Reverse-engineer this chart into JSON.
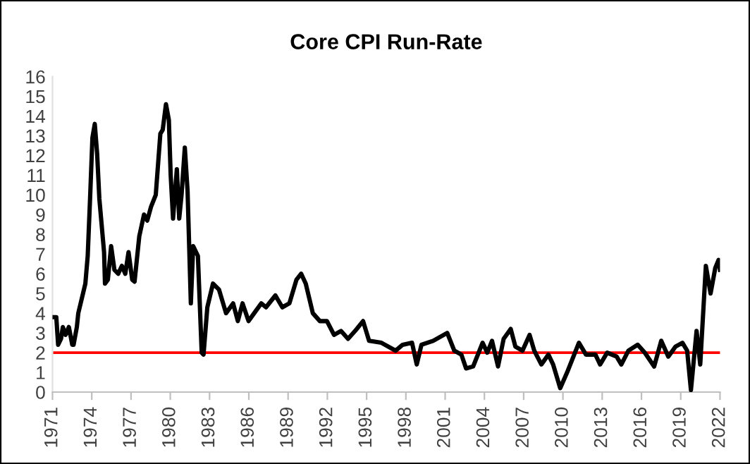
{
  "chart_data": {
    "type": "line",
    "title": "Core CPI Run-Rate",
    "series": [
      {
        "color": "#000000",
        "x": [
          1971.0,
          1971.29,
          1971.43,
          1971.65,
          1971.79,
          1972.0,
          1972.25,
          1972.51,
          1972.61,
          1972.86,
          1972.97,
          1973.33,
          1973.51,
          1973.69,
          1973.87,
          1974.05,
          1974.23,
          1974.41,
          1974.58,
          1974.94,
          1975.01,
          1975.23,
          1975.48,
          1975.73,
          1976.02,
          1976.3,
          1976.56,
          1976.81,
          1977.09,
          1977.27,
          1977.63,
          1977.99,
          1978.24,
          1978.53,
          1978.89,
          1979.24,
          1979.42,
          1979.67,
          1979.89,
          1980.03,
          1980.21,
          1980.5,
          1980.68,
          1980.86,
          1981.11,
          1981.32,
          1981.57,
          1981.75,
          1982.11,
          1982.4,
          1982.54,
          1982.83,
          1983.26,
          1983.72,
          1984.26,
          1984.8,
          1985.16,
          1985.52,
          1985.98,
          1986.41,
          1986.95,
          1987.31,
          1988.03,
          1988.56,
          1989.1,
          1989.64,
          1990.0,
          1990.35,
          1990.89,
          1991.43,
          1991.97,
          1992.51,
          1993.04,
          1993.58,
          1994.12,
          1994.73,
          1995.19,
          1996.13,
          1997.21,
          1997.75,
          1998.47,
          1998.83,
          1999.19,
          2000.08,
          2001.16,
          2001.7,
          2002.24,
          2002.6,
          2003.14,
          2003.5,
          2003.86,
          2004.22,
          2004.58,
          2005.04,
          2005.47,
          2006.01,
          2006.37,
          2006.91,
          2007.45,
          2007.81,
          2008.35,
          2008.89,
          2009.25,
          2009.79,
          2010.32,
          2010.86,
          2011.22,
          2011.76,
          2012.48,
          2012.84,
          2013.38,
          2014.1,
          2014.46,
          2015.0,
          2015.71,
          2016.25,
          2016.97,
          2017.51,
          2018.05,
          2018.59,
          2019.13,
          2019.49,
          2019.78,
          2020.21,
          2020.49,
          2020.92,
          2021.28,
          2021.64,
          2021.89,
          2022.0
        ],
        "values": [
          3.8,
          3.8,
          2.4,
          2.7,
          3.3,
          2.9,
          3.3,
          2.4,
          2.4,
          3.3,
          4.0,
          5.0,
          5.5,
          6.9,
          9.8,
          12.9,
          13.6,
          12.1,
          9.8,
          7.1,
          5.5,
          5.7,
          7.4,
          6.2,
          6.0,
          6.4,
          6.0,
          7.1,
          5.7,
          5.6,
          7.9,
          9.0,
          8.7,
          9.4,
          10.0,
          13.1,
          13.3,
          14.6,
          13.8,
          11.0,
          8.8,
          11.3,
          8.8,
          10.0,
          12.4,
          10.2,
          4.5,
          7.4,
          6.9,
          2.0,
          1.9,
          4.3,
          5.5,
          5.2,
          4.0,
          4.5,
          3.6,
          4.5,
          3.6,
          4.0,
          4.5,
          4.3,
          4.9,
          4.3,
          4.5,
          5.7,
          6.0,
          5.5,
          4.0,
          3.6,
          3.6,
          2.9,
          3.1,
          2.7,
          3.1,
          3.6,
          2.6,
          2.5,
          2.1,
          2.4,
          2.5,
          1.4,
          2.4,
          2.6,
          3.0,
          2.1,
          1.9,
          1.2,
          1.3,
          1.9,
          2.5,
          2.0,
          2.6,
          1.3,
          2.7,
          3.2,
          2.3,
          2.1,
          2.9,
          2.1,
          1.4,
          1.9,
          1.4,
          0.2,
          1.0,
          1.9,
          2.5,
          1.9,
          1.9,
          1.4,
          2.0,
          1.8,
          1.4,
          2.1,
          2.4,
          2.0,
          1.3,
          2.6,
          1.8,
          2.3,
          2.5,
          2.1,
          0.1,
          3.1,
          1.4,
          6.4,
          5.0,
          6.3,
          6.7,
          6.2
        ]
      }
    ],
    "xlim": [
      1971,
      2022
    ],
    "xticks": [
      1971,
      1974,
      1977,
      1980,
      1983,
      1986,
      1989,
      1992,
      1995,
      1998,
      2001,
      2004,
      2007,
      2010,
      2013,
      2016,
      2019,
      2022
    ],
    "ylim": [
      0,
      16
    ],
    "yticks": [
      0,
      1,
      2,
      3,
      4,
      5,
      6,
      7,
      8,
      9,
      10,
      11,
      12,
      13,
      14,
      15,
      16
    ],
    "ref_lines": [
      {
        "axis": "y",
        "value": 2,
        "color": "#ff0000"
      }
    ],
    "grid": false
  }
}
